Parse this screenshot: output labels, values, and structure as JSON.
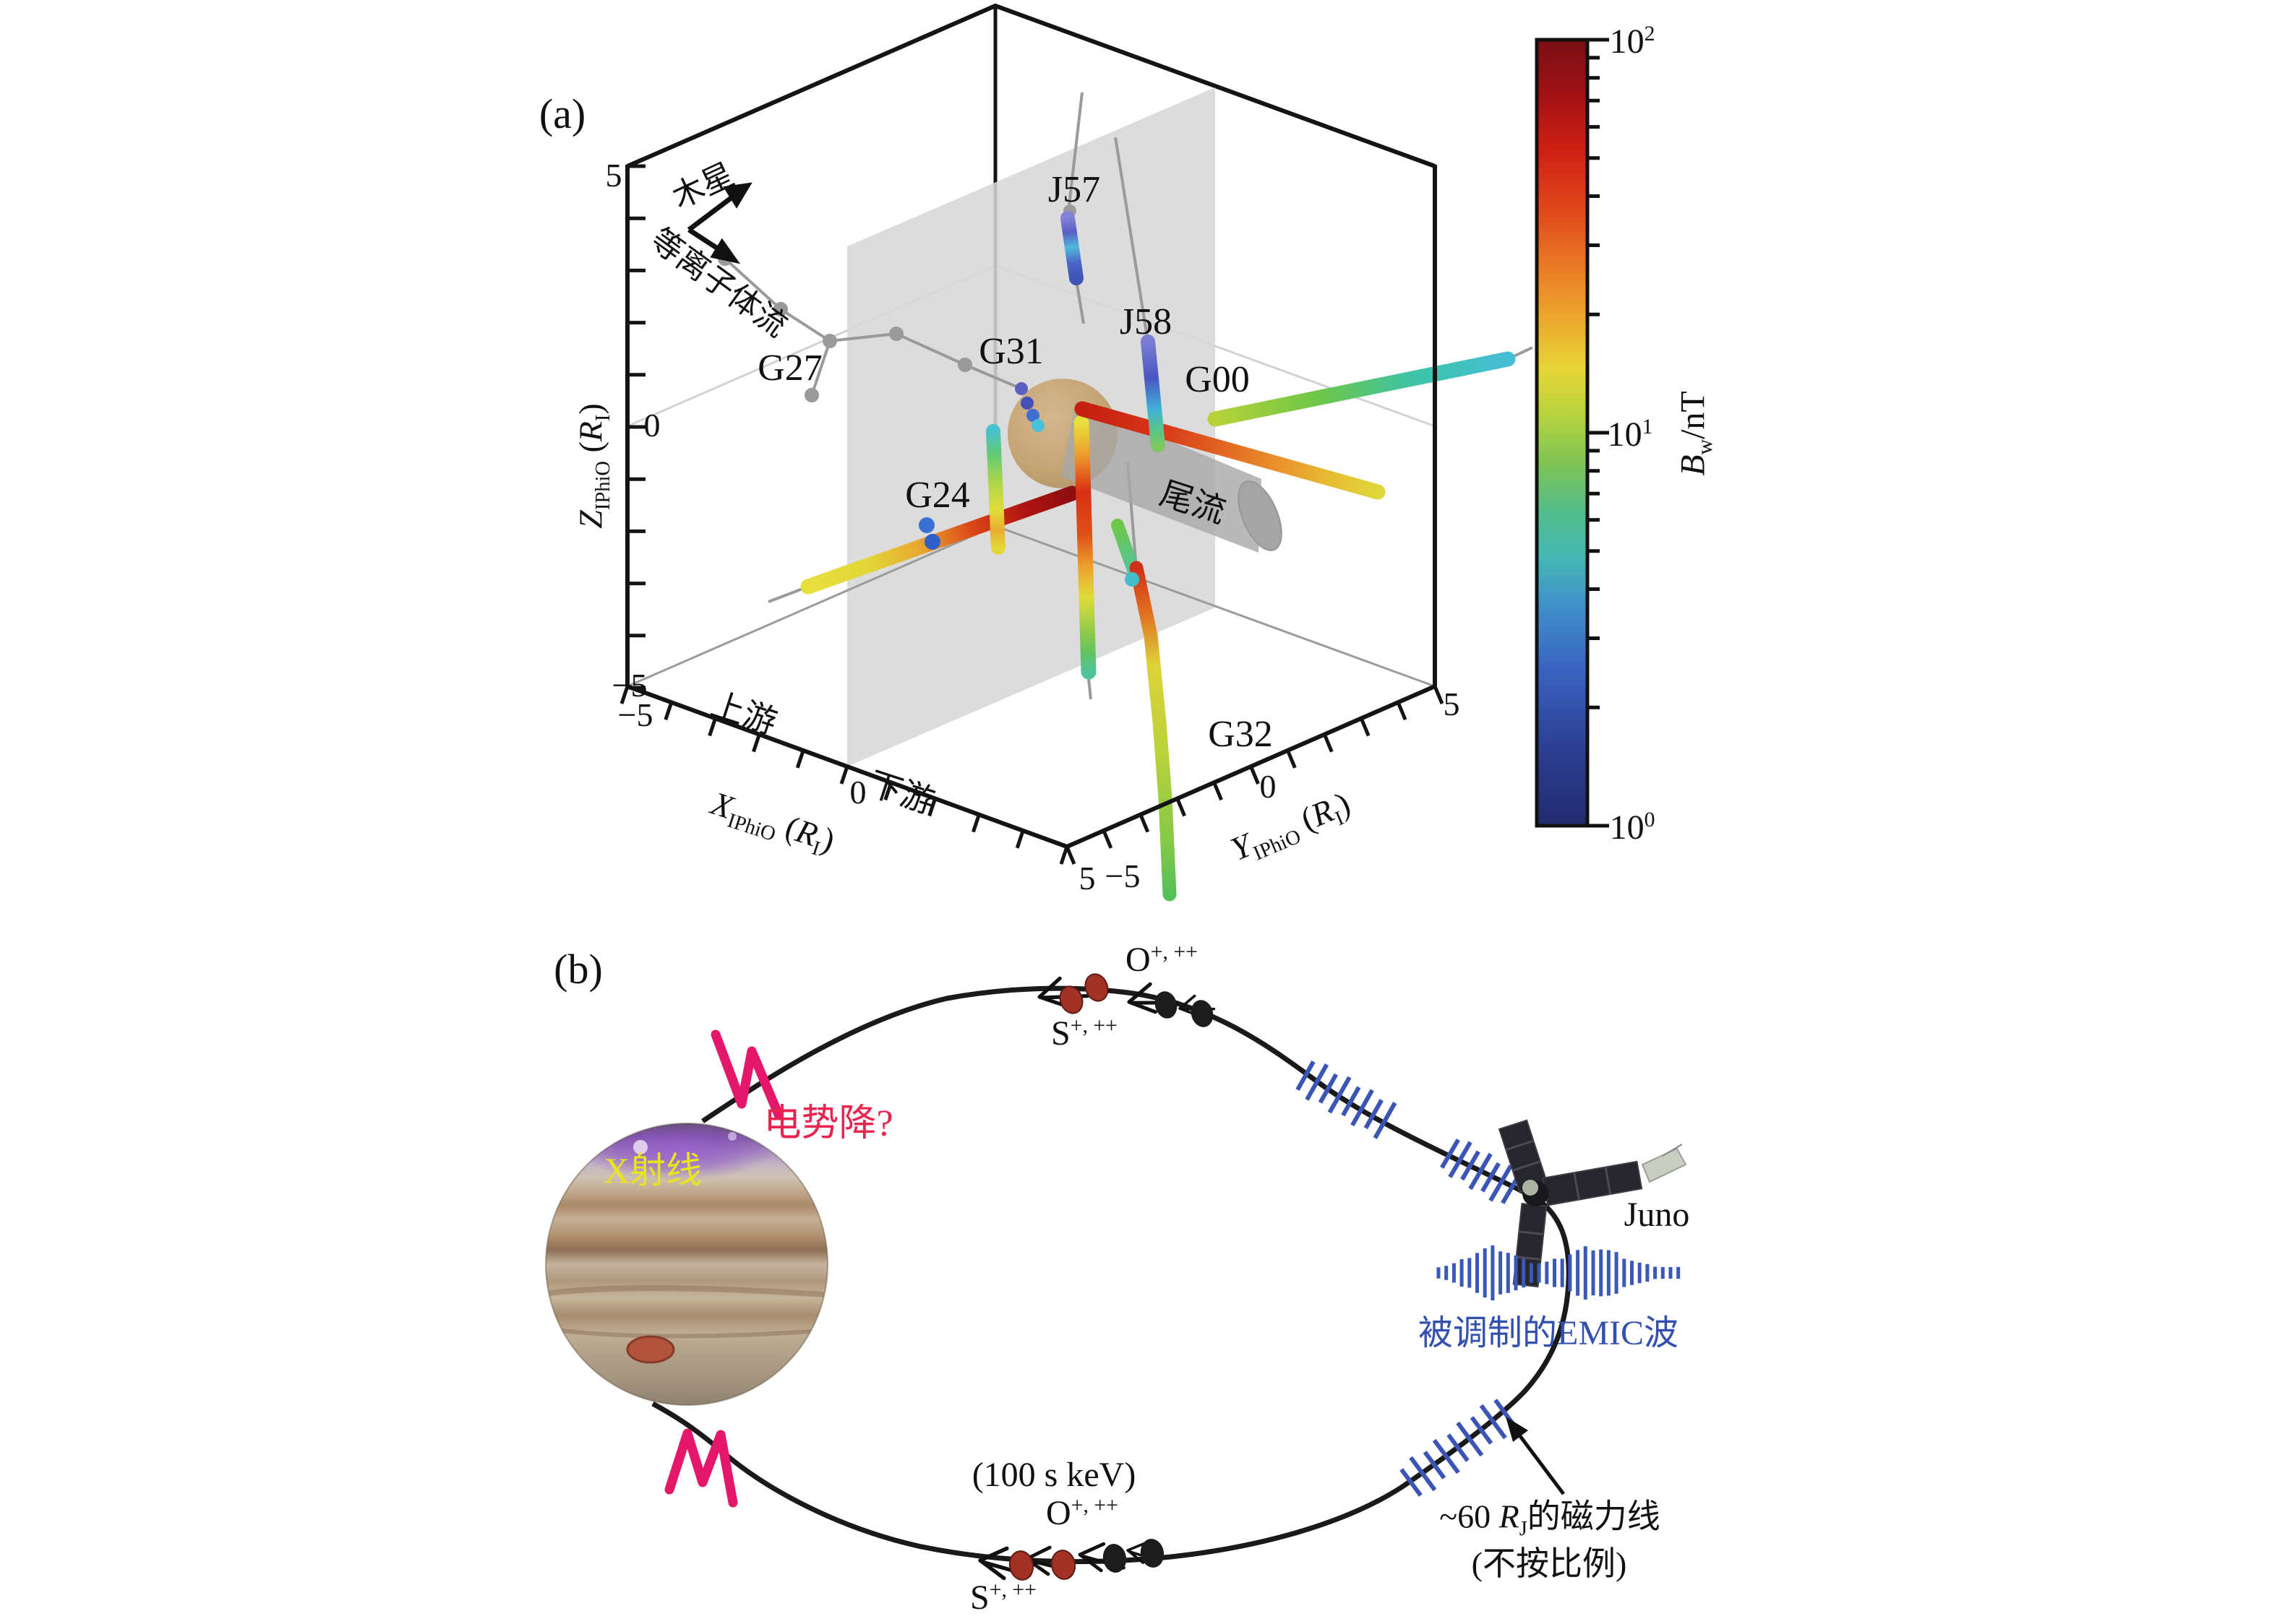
{
  "figure": {
    "panel_a": {
      "label": "(a)",
      "annotations": {
        "jupiter": "木星",
        "plasma_flow": "等离子体流",
        "wake": "尾流",
        "upstream": "上游",
        "downstream": "下游"
      },
      "flyby_labels": {
        "g27": "G27",
        "g31": "G31",
        "j57": "J57",
        "j58": "J58",
        "g00": "G00",
        "g24": "G24",
        "g32": "G32"
      },
      "axes": {
        "x_var": "X",
        "x_sub": "IPhiO",
        "y_var": "Y",
        "y_sub": "IPhiO",
        "z_var": "Z",
        "z_sub": "IPhiO",
        "unit_open": "(",
        "unit_R": "R",
        "unit_sub": "I",
        "unit_close": ")",
        "tick_m5": "−5",
        "tick_0": "0",
        "tick_5": "5"
      }
    },
    "colorbar": {
      "title_base": "B",
      "title_sub": "w",
      "title_unit": "/nT",
      "top_base": "10",
      "top_exp": "2",
      "mid_base": "10",
      "mid_exp": "1",
      "bot_base": "10",
      "bot_exp": "0"
    },
    "panel_b": {
      "label": "(b)",
      "xray": "X射线",
      "potential_drop": "电势降?",
      "juno": "Juno",
      "emic": "被调制的EMIC波",
      "energy": "(100 s keV)",
      "fieldline_pre": "~60 ",
      "fieldline_R": "R",
      "fieldline_sub": "J",
      "fieldline_post": "的磁力线",
      "fieldline_line2": "(不按比例)",
      "ion_o_base": "O",
      "ion_o_sup": "+, ++",
      "ion_s_base": "S",
      "ion_s_sup": "+, ++"
    },
    "chart_data": {
      "type": "scatter",
      "title": "",
      "description_a": "3D view of Galileo/Juno flyby trajectories around Io in IPhiO coordinates; point color gives EMIC/ion-cyclotron wave amplitude Bw",
      "x_axis": {
        "label": "X_IPhiO (R_I)",
        "range": [
          -5,
          5
        ],
        "region_labels": [
          "上游",
          "下游"
        ]
      },
      "y_axis": {
        "label": "Y_IPhiO (R_I)",
        "range": [
          -5,
          5
        ]
      },
      "z_axis": {
        "label": "Z_IPhiO (R_I)",
        "range": [
          -5,
          5
        ]
      },
      "colorbar": {
        "label": "Bw/nT",
        "scale": "log",
        "range": [
          1,
          100
        ],
        "ticks": [
          1,
          10,
          100
        ]
      },
      "trajectories": [
        {
          "name": "G27",
          "appearance": "gray line with gray dots, upper left, no wave data shown"
        },
        {
          "name": "G31",
          "appearance": "blue-cyan dots descending toward Io from the north"
        },
        {
          "name": "J57",
          "appearance": "short vertical track north of Io, Bw ~1-3 nT (blue)"
        },
        {
          "name": "J58",
          "appearance": "vertical track, blue to cyan-green, Bw ~1-10 nT"
        },
        {
          "name": "G00",
          "appearance": "long diagonal track, red (~50-100 nT) near Io fading to cyan (~5 nT) downstream"
        },
        {
          "name": "G24",
          "appearance": "diagonal upstream track, yellow to dark red (~10-100 nT) near Io, with two blue dots"
        },
        {
          "name": "G32",
          "appearance": "southern tracks, red near wake fading to green-yellow (~5-20 nT) far south"
        }
      ],
      "scene_objects": [
        "Io sphere (tan)",
        "plasma wake cylinder (gray)",
        "X=0 plane (gray)"
      ],
      "description_b": "Schematic of an ~60 RJ Jupiter magnetic field line (not to scale): energetic O+,++ and S+,++ ions (100 s keV) drift toward Jupiter producing X-rays; Juno observes modulated EMIC waves (blue wave packets); possible potential drops (magenta) near Jupiter"
    }
  }
}
